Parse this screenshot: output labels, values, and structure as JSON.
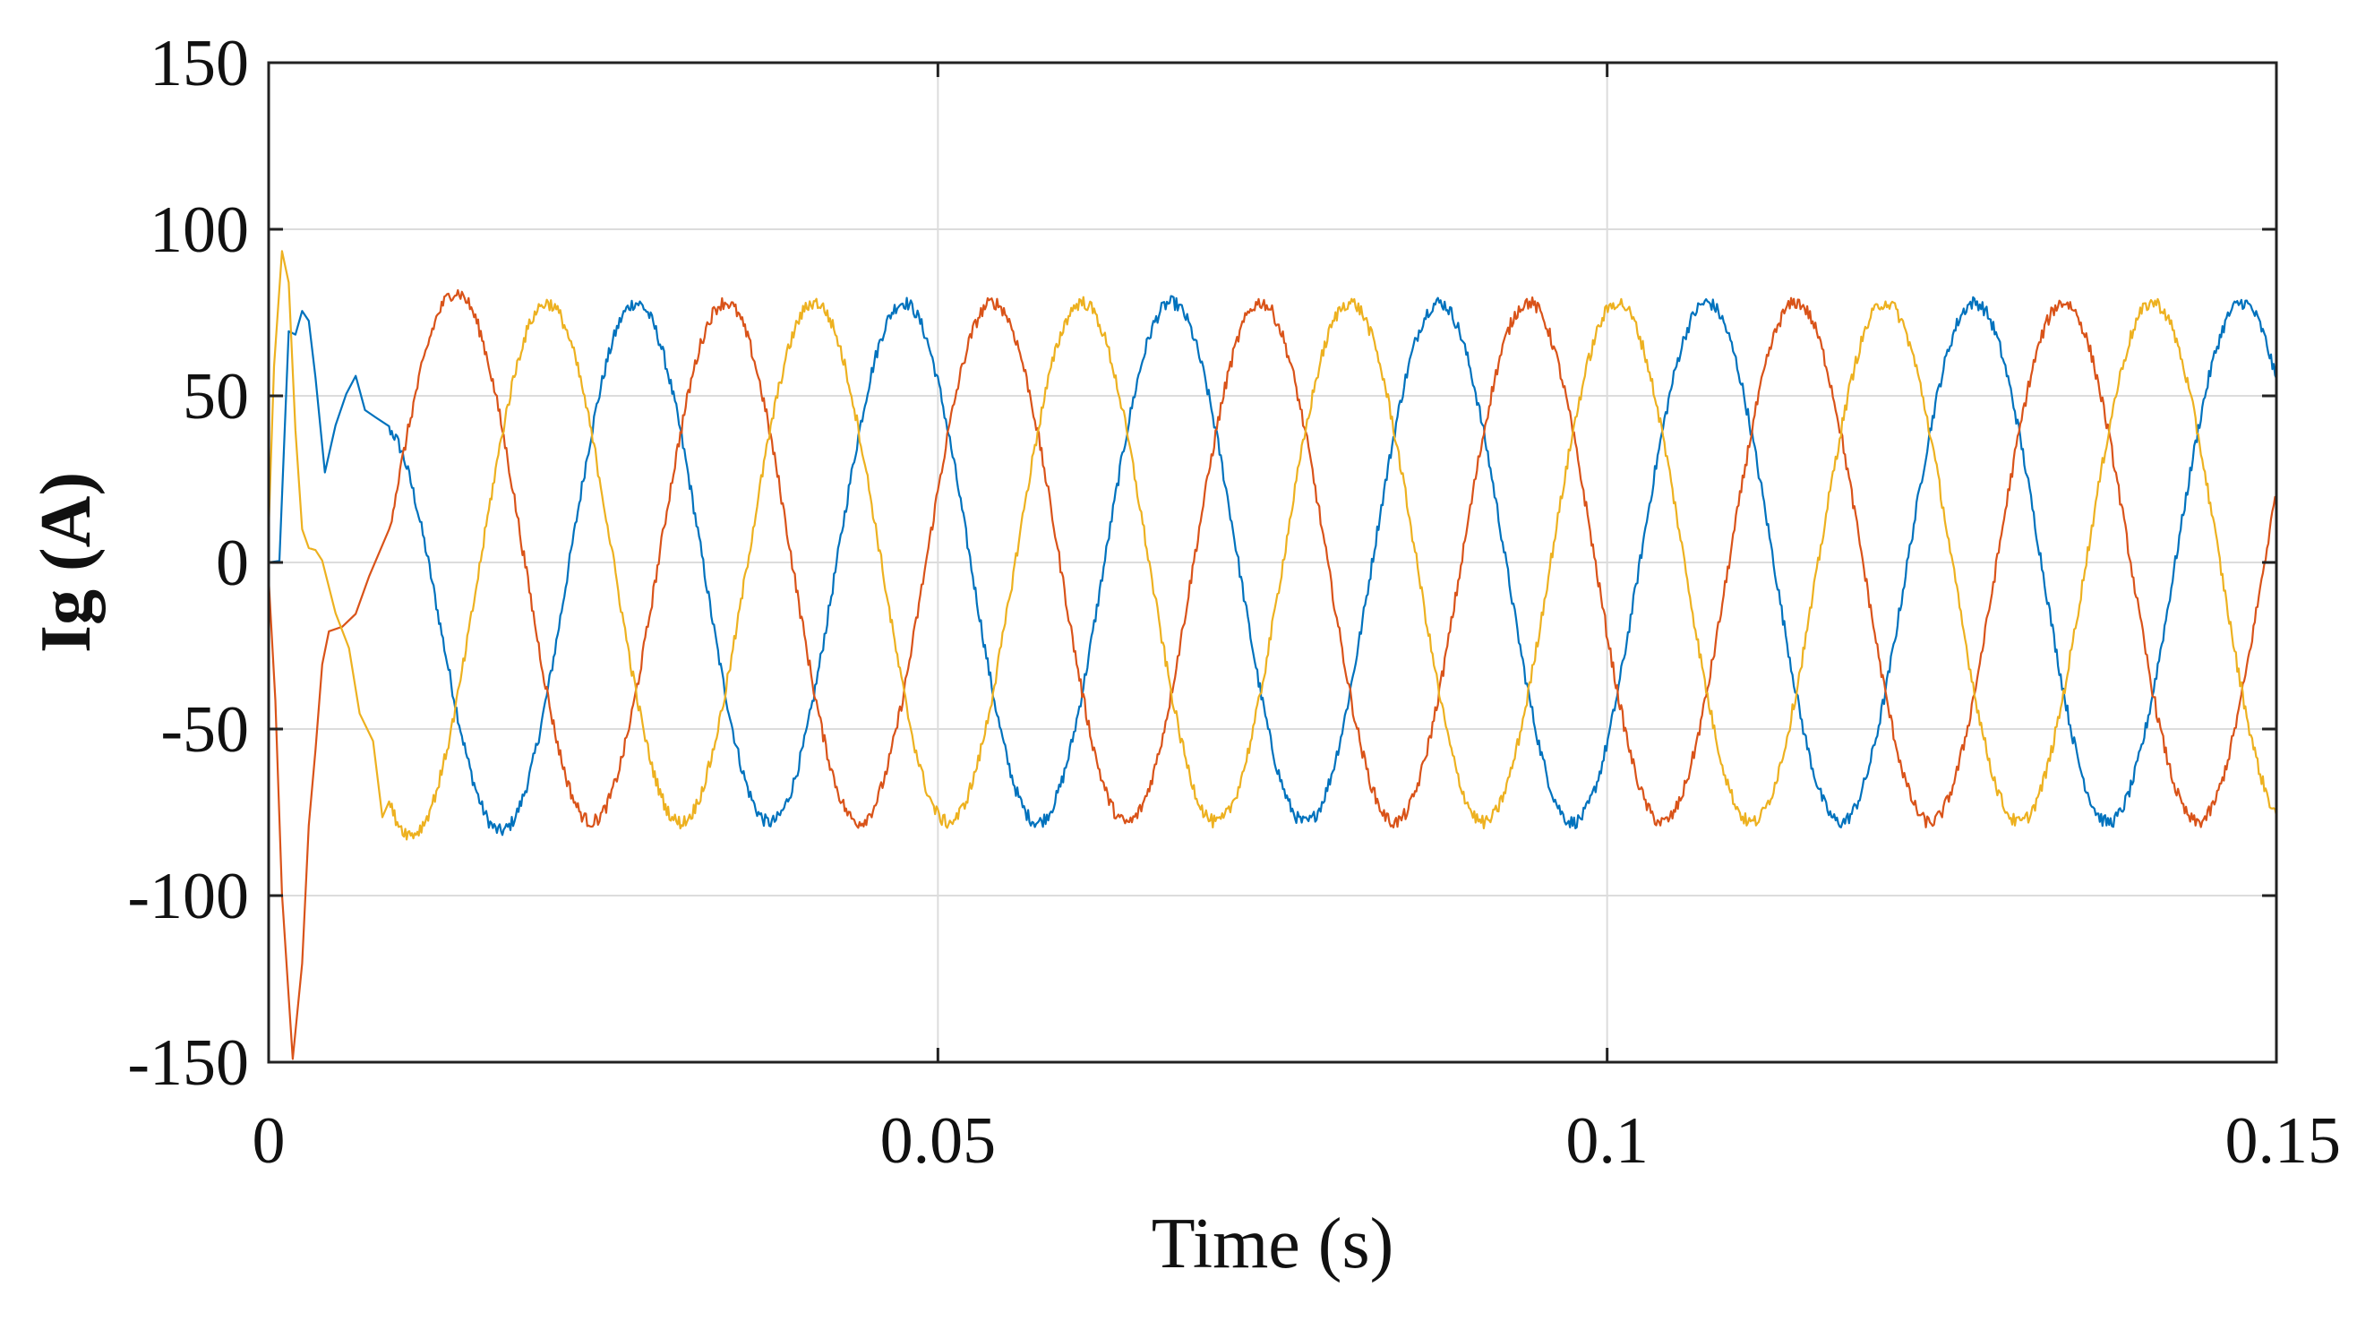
{
  "chart_data": {
    "type": "line",
    "title": "",
    "xlabel": "Time (s)",
    "ylabel": "Ig (A)",
    "xlim": [
      0,
      0.15
    ],
    "ylim": [
      -150,
      150
    ],
    "x_ticks": [
      0,
      0.05,
      0.1,
      0.15
    ],
    "x_tick_labels": [
      "0",
      "0.05",
      "0.1",
      "0.15"
    ],
    "y_ticks": [
      150,
      100,
      50,
      0,
      -50,
      -100,
      -150
    ],
    "y_tick_labels": [
      "150",
      "100",
      "50",
      "0",
      "-50",
      "-100",
      "-150"
    ],
    "grid": true,
    "legend": "none",
    "signal": {
      "steady_state_amplitude": 78,
      "frequency_hz": 50,
      "phase_shift_deg": 120,
      "transient_end_s": 0.009
    },
    "series": [
      {
        "color": "#0072bd",
        "transient_points": [
          [
            0,
            0
          ],
          [
            0.0008,
            0
          ],
          [
            0.0015,
            70
          ],
          [
            0.002,
            68
          ],
          [
            0.0025,
            74
          ],
          [
            0.003,
            72
          ],
          [
            0.0035,
            55
          ],
          [
            0.0042,
            28
          ],
          [
            0.005,
            40
          ],
          [
            0.0058,
            50
          ],
          [
            0.0065,
            55
          ],
          [
            0.0072,
            45
          ],
          [
            0.008,
            44
          ],
          [
            0.009,
            40
          ]
        ],
        "steady_phase_deg": -44
      },
      {
        "color": "#d95319",
        "transient_points": [
          [
            0,
            -5
          ],
          [
            0.0005,
            -40
          ],
          [
            0.001,
            -100
          ],
          [
            0.0018,
            -150
          ],
          [
            0.0025,
            -120
          ],
          [
            0.003,
            -80
          ],
          [
            0.0035,
            -55
          ],
          [
            0.004,
            -30
          ],
          [
            0.0045,
            -22
          ],
          [
            0.0055,
            -20
          ],
          [
            0.0065,
            -15
          ],
          [
            0.0075,
            -5
          ],
          [
            0.009,
            10
          ]
        ],
        "steady_phase_deg": -164
      },
      {
        "color": "#edb120",
        "transient_points": [
          [
            0,
            10
          ],
          [
            0.0004,
            60
          ],
          [
            0.001,
            92
          ],
          [
            0.0015,
            85
          ],
          [
            0.002,
            40
          ],
          [
            0.0025,
            10
          ],
          [
            0.003,
            5
          ],
          [
            0.0035,
            5
          ],
          [
            0.004,
            2
          ],
          [
            0.005,
            -15
          ],
          [
            0.006,
            -25
          ],
          [
            0.0068,
            -45
          ],
          [
            0.0078,
            -55
          ],
          [
            0.0085,
            -75
          ],
          [
            0.009,
            -72
          ]
        ],
        "steady_phase_deg": 76
      }
    ]
  }
}
